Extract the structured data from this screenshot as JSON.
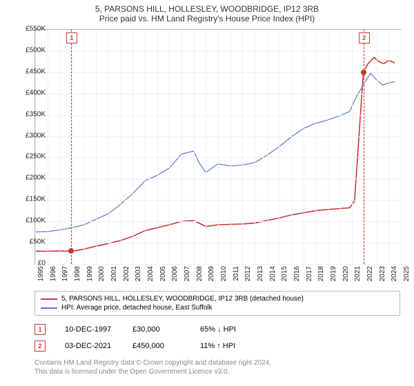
{
  "title_line1": "5, PARSONS HILL, HOLLESLEY, WOODBRIDGE, IP12 3RB",
  "title_line2": "Price paid vs. HM Land Registry's House Price Index (HPI)",
  "chart": {
    "type": "line",
    "background_color": "#ffffff",
    "grid_color": "#f0f0f0",
    "border_color": "#bbbbbb",
    "ylim": [
      0,
      550000
    ],
    "ytick_step": 50000,
    "yticks": [
      "£0",
      "£50K",
      "£100K",
      "£150K",
      "£200K",
      "£250K",
      "£300K",
      "£350K",
      "£400K",
      "£450K",
      "£500K",
      "£550K"
    ],
    "xlim": [
      1995,
      2025
    ],
    "xticks": [
      "1995",
      "1996",
      "1997",
      "1998",
      "1999",
      "2000",
      "2001",
      "2002",
      "2003",
      "2004",
      "2005",
      "2006",
      "2007",
      "2008",
      "2009",
      "2010",
      "2011",
      "2012",
      "2013",
      "2014",
      "2015",
      "2016",
      "2017",
      "2018",
      "2019",
      "2020",
      "2021",
      "2022",
      "2023",
      "2024",
      "2025"
    ],
    "series": [
      {
        "name": "property",
        "label": "5, PARSONS HILL, HOLLESLEY, WOODBRIDGE, IP12 3RB (detached house)",
        "color": "#cc3333",
        "line_width": 1.6,
        "points": [
          [
            1995,
            30000
          ],
          [
            1996,
            30000
          ],
          [
            1997,
            30500
          ],
          [
            1997.94,
            30000
          ],
          [
            1998.5,
            32000
          ],
          [
            1999,
            35000
          ],
          [
            2000,
            42000
          ],
          [
            2001,
            48000
          ],
          [
            2002,
            55000
          ],
          [
            2003,
            65000
          ],
          [
            2004,
            78000
          ],
          [
            2005,
            85000
          ],
          [
            2006,
            92000
          ],
          [
            2007,
            100000
          ],
          [
            2008,
            102000
          ],
          [
            2008.5,
            95000
          ],
          [
            2009,
            88000
          ],
          [
            2010,
            92000
          ],
          [
            2011,
            93000
          ],
          [
            2012,
            94000
          ],
          [
            2013,
            96000
          ],
          [
            2014,
            102000
          ],
          [
            2015,
            108000
          ],
          [
            2016,
            115000
          ],
          [
            2017,
            120000
          ],
          [
            2018,
            125000
          ],
          [
            2019,
            128000
          ],
          [
            2020,
            130000
          ],
          [
            2020.8,
            132000
          ],
          [
            2021.2,
            148000
          ],
          [
            2021.92,
            450000
          ],
          [
            2022.3,
            470000
          ],
          [
            2022.8,
            485000
          ],
          [
            2023.2,
            475000
          ],
          [
            2023.6,
            470000
          ],
          [
            2024,
            478000
          ],
          [
            2024.5,
            472000
          ]
        ]
      },
      {
        "name": "hpi",
        "label": "HPI: Average price, detached house, East Suffolk",
        "color": "#5577cc",
        "line_width": 1.2,
        "points": [
          [
            1995,
            75000
          ],
          [
            1996,
            76000
          ],
          [
            1997,
            80000
          ],
          [
            1998,
            85000
          ],
          [
            1999,
            92000
          ],
          [
            2000,
            105000
          ],
          [
            2001,
            118000
          ],
          [
            2002,
            140000
          ],
          [
            2003,
            165000
          ],
          [
            2004,
            195000
          ],
          [
            2005,
            208000
          ],
          [
            2006,
            225000
          ],
          [
            2007,
            258000
          ],
          [
            2008,
            265000
          ],
          [
            2008.5,
            235000
          ],
          [
            2009,
            215000
          ],
          [
            2010,
            235000
          ],
          [
            2011,
            230000
          ],
          [
            2012,
            232000
          ],
          [
            2013,
            238000
          ],
          [
            2014,
            255000
          ],
          [
            2015,
            275000
          ],
          [
            2016,
            298000
          ],
          [
            2017,
            318000
          ],
          [
            2018,
            330000
          ],
          [
            2019,
            338000
          ],
          [
            2020,
            348000
          ],
          [
            2020.8,
            358000
          ],
          [
            2021.3,
            390000
          ],
          [
            2021.92,
            420000
          ],
          [
            2022.5,
            448000
          ],
          [
            2023,
            432000
          ],
          [
            2023.5,
            420000
          ],
          [
            2024,
            425000
          ],
          [
            2024.5,
            428000
          ]
        ]
      }
    ],
    "markers": [
      {
        "num": "1",
        "x": 1997.94,
        "y": 30000
      },
      {
        "num": "2",
        "x": 2021.92,
        "y": 450000
      }
    ],
    "label_fontsize": 10
  },
  "sales": [
    {
      "num": "1",
      "date": "10-DEC-1997",
      "price": "£30,000",
      "delta": "65% ↓ HPI"
    },
    {
      "num": "2",
      "date": "03-DEC-2021",
      "price": "£450,000",
      "delta": "11% ↑ HPI"
    }
  ],
  "footnote_line1": "Contains HM Land Registry data © Crown copyright and database right 2024.",
  "footnote_line2": "This data is licensed under the Open Government Licence v3.0."
}
